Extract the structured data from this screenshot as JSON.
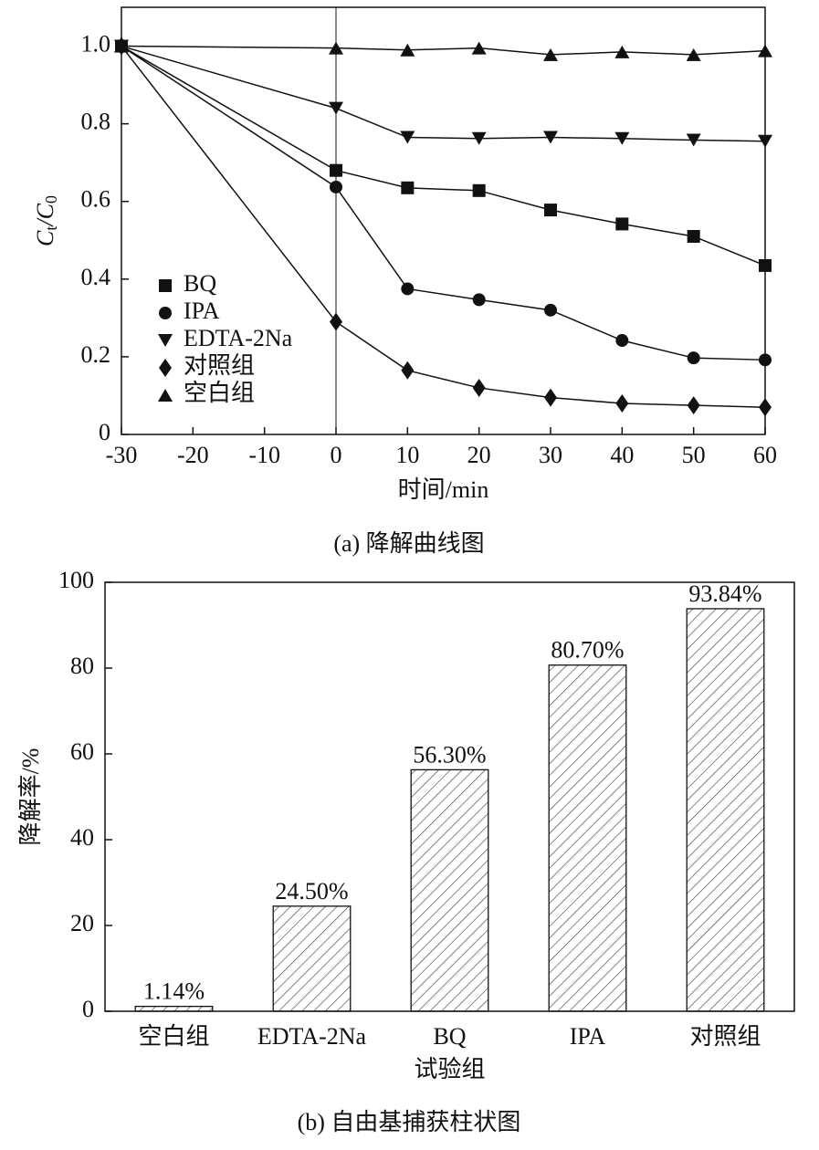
{
  "chart_data": [
    {
      "type": "line",
      "x": [
        -30,
        0,
        10,
        20,
        30,
        40,
        50,
        60
      ],
      "series": [
        {
          "name": "BQ",
          "color": "#111111",
          "marker": "square",
          "values": [
            1.0,
            0.68,
            0.635,
            0.628,
            0.578,
            0.542,
            0.51,
            0.435
          ]
        },
        {
          "name": "IPA",
          "color": "#111111",
          "marker": "circle",
          "values": [
            1.0,
            0.637,
            0.375,
            0.347,
            0.32,
            0.242,
            0.197,
            0.192
          ]
        },
        {
          "name": "EDTA-2Na",
          "color": "#111111",
          "marker": "triangle-down",
          "values": [
            1.0,
            0.84,
            0.765,
            0.762,
            0.765,
            0.762,
            0.758,
            0.755
          ]
        },
        {
          "name": "对照组",
          "color": "#111111",
          "marker": "diamond",
          "values": [
            1.0,
            0.29,
            0.165,
            0.12,
            0.095,
            0.08,
            0.075,
            0.07
          ]
        },
        {
          "name": "空白组",
          "color": "#111111",
          "marker": "triangle-up",
          "values": [
            1.0,
            0.995,
            0.99,
            0.995,
            0.978,
            0.985,
            0.978,
            0.988
          ]
        }
      ],
      "xlim": [
        -30,
        60
      ],
      "xticks": [
        -30,
        -20,
        -10,
        0,
        10,
        20,
        30,
        40,
        50,
        60
      ],
      "ylim": [
        0,
        1.1
      ],
      "yticks": [
        0,
        0.2,
        0.4,
        0.6,
        0.8,
        {
          "value": 1,
          "label": "1.0"
        }
      ],
      "vline": 0,
      "xlabel": "时间/min",
      "ylabel": [
        "C",
        "t",
        "/C",
        "0"
      ],
      "legend": "lower left",
      "caption": "(a) 降解曲线图"
    },
    {
      "type": "bar",
      "categories": [
        "空白组",
        "EDTA-2Na",
        "BQ",
        "IPA",
        "对照组"
      ],
      "values": [
        1.14,
        24.5,
        56.3,
        80.7,
        93.84
      ],
      "value_labels": [
        "1.14%",
        "24.50%",
        "56.30%",
        "80.70%",
        "93.84%"
      ],
      "color": "#ffffff",
      "hatch": "diagonal",
      "ylim": [
        0,
        100
      ],
      "yticks": [
        0,
        20,
        40,
        60,
        80,
        100
      ],
      "xlabel": "试验组",
      "ylabel": "降解率/%",
      "caption": "(b) 自由基捕获柱状图"
    }
  ]
}
